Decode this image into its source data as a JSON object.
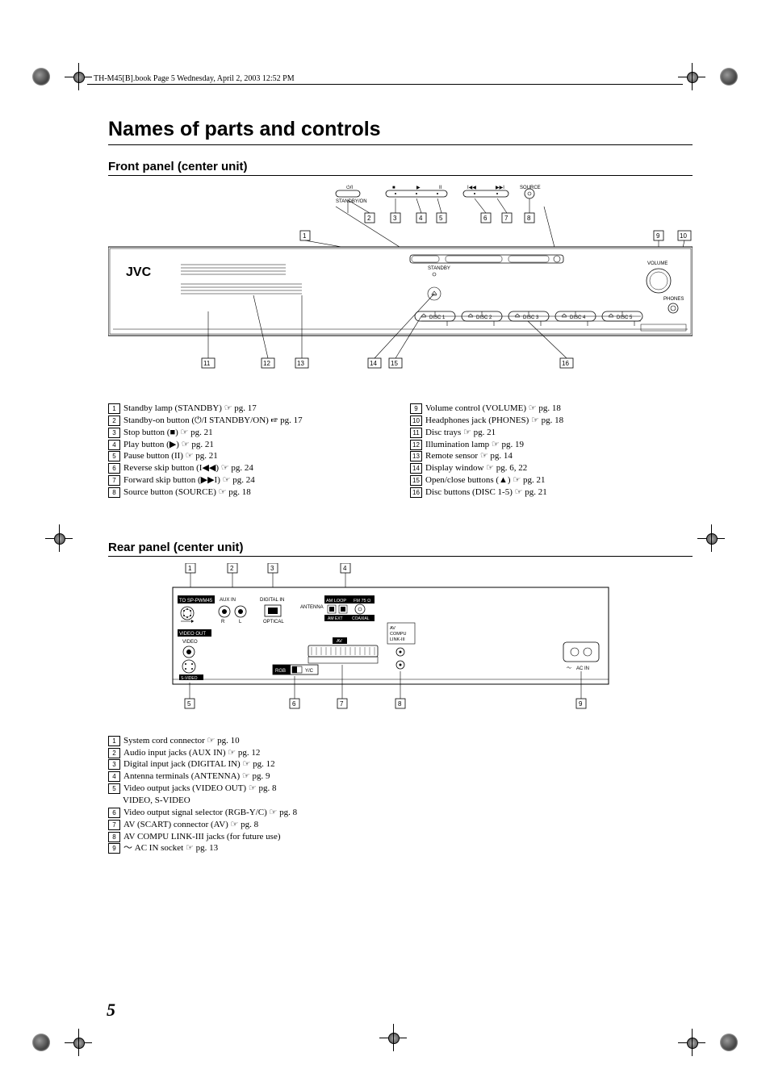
{
  "printinfo": "TH-M45[B].book  Page 5  Wednesday, April 2, 2003  12:52 PM",
  "title": "Names of parts and controls",
  "front_heading": "Front panel (center unit)",
  "rear_heading": "Rear panel (center unit)",
  "page_number": "5",
  "page_ref_glyph": "☞",
  "front_diagram": {
    "brand": "JVC",
    "top_labels": {
      "standby": "STANDBY/ON",
      "source": "SOURCE",
      "symbols": [
        "⏻/I",
        "■",
        "▶",
        "II",
        "I◀◀     ▶▶I"
      ]
    },
    "panel_labels": {
      "standby": "STANDBY",
      "volume": "VOLUME",
      "phones": "PHONES",
      "disc_buttons": [
        "DISC 1",
        "DISC 2",
        "DISC 3",
        "DISC 4",
        "DISC 5"
      ]
    },
    "callouts_top": [
      "2",
      "3",
      "4",
      "5",
      "6",
      "7",
      "8"
    ],
    "callouts_mid": [
      "1",
      "9",
      "10"
    ],
    "callouts_bottom": [
      "11",
      "12",
      "13",
      "14",
      "15",
      "16"
    ]
  },
  "front_legend_left": [
    {
      "n": "1",
      "text": "Standby lamp (STANDBY) ",
      "pg": "pg. 17"
    },
    {
      "n": "2",
      "text": "Standby-on button (⏻/I STANDBY/ON) ",
      "pg": "pg. 17"
    },
    {
      "n": "3",
      "text": "Stop button (■) ",
      "pg": "pg. 21"
    },
    {
      "n": "4",
      "text": "Play button (▶) ",
      "pg": "pg. 21"
    },
    {
      "n": "5",
      "text": "Pause button (II) ",
      "pg": "pg. 21"
    },
    {
      "n": "6",
      "text": "Reverse skip button (I◀◀) ",
      "pg": "pg. 24"
    },
    {
      "n": "7",
      "text": "Forward skip button (▶▶I) ",
      "pg": "pg. 24"
    },
    {
      "n": "8",
      "text": "Source button (SOURCE) ",
      "pg": "pg. 18"
    }
  ],
  "front_legend_right": [
    {
      "n": "9",
      "text": "Volume control (VOLUME) ",
      "pg": "pg. 18"
    },
    {
      "n": "10",
      "text": "Headphones jack (PHONES) ",
      "pg": "pg. 18"
    },
    {
      "n": "11",
      "text": "Disc trays ",
      "pg": "pg. 21"
    },
    {
      "n": "12",
      "text": "Illumination lamp ",
      "pg": "pg. 19"
    },
    {
      "n": "13",
      "text": "Remote sensor ",
      "pg": "pg. 14"
    },
    {
      "n": "14",
      "text": "Display window ",
      "pg": "pg. 6, 22"
    },
    {
      "n": "15",
      "text": "Open/close buttons (▲) ",
      "pg": "pg. 21"
    },
    {
      "n": "16",
      "text": "Disc buttons (DISC 1-5) ",
      "pg": "pg. 21"
    }
  ],
  "rear_diagram": {
    "labels": {
      "sp": "TO SP-PWM45",
      "aux": "AUX IN",
      "digital": "DIGITAL IN",
      "optical": "OPTICAL",
      "antenna": "ANTENNA",
      "amloop": "AM LOOP",
      "fm": "FM 75 Ω",
      "amext": "AM EXT",
      "coaxial": "COAXIAL",
      "videoout": "VIDEO OUT",
      "video": "VIDEO",
      "svideo": "S-VIDEO",
      "av": "AV",
      "rgb": "RGB",
      "yc": "Y/C",
      "compu": "AV\nCOMPU\nLINK-III",
      "acin": "AC IN",
      "lr": [
        "L",
        "R"
      ]
    },
    "callouts_top": [
      "1",
      "2",
      "3",
      "4"
    ],
    "callouts_bottom": [
      "5",
      "6",
      "7",
      "8",
      "9"
    ]
  },
  "rear_legend": [
    {
      "n": "1",
      "text": "System cord connector ",
      "pg": "pg. 10"
    },
    {
      "n": "2",
      "text": "Audio input jacks (AUX IN) ",
      "pg": "pg. 12"
    },
    {
      "n": "3",
      "text": "Digital input jack (DIGITAL IN) ",
      "pg": "pg. 12"
    },
    {
      "n": "4",
      "text": "Antenna terminals (ANTENNA) ",
      "pg": "pg. 9"
    },
    {
      "n": "5",
      "text": "Video output jacks (VIDEO OUT) ",
      "pg": "pg. 8",
      "extra": "VIDEO, S-VIDEO"
    },
    {
      "n": "6",
      "text": "Video output signal selector (RGB-Y/C) ",
      "pg": "pg. 8"
    },
    {
      "n": "7",
      "text": "AV (SCART) connector (AV) ",
      "pg": "pg. 8"
    },
    {
      "n": "8",
      "text": "AV COMPU LINK-III jacks (for future use)",
      "pg": ""
    },
    {
      "n": "9",
      "text": "〜 AC IN socket ",
      "pg": "pg. 13"
    }
  ],
  "colors": {
    "text": "#000000",
    "bg": "#ffffff",
    "line": "#000000"
  }
}
